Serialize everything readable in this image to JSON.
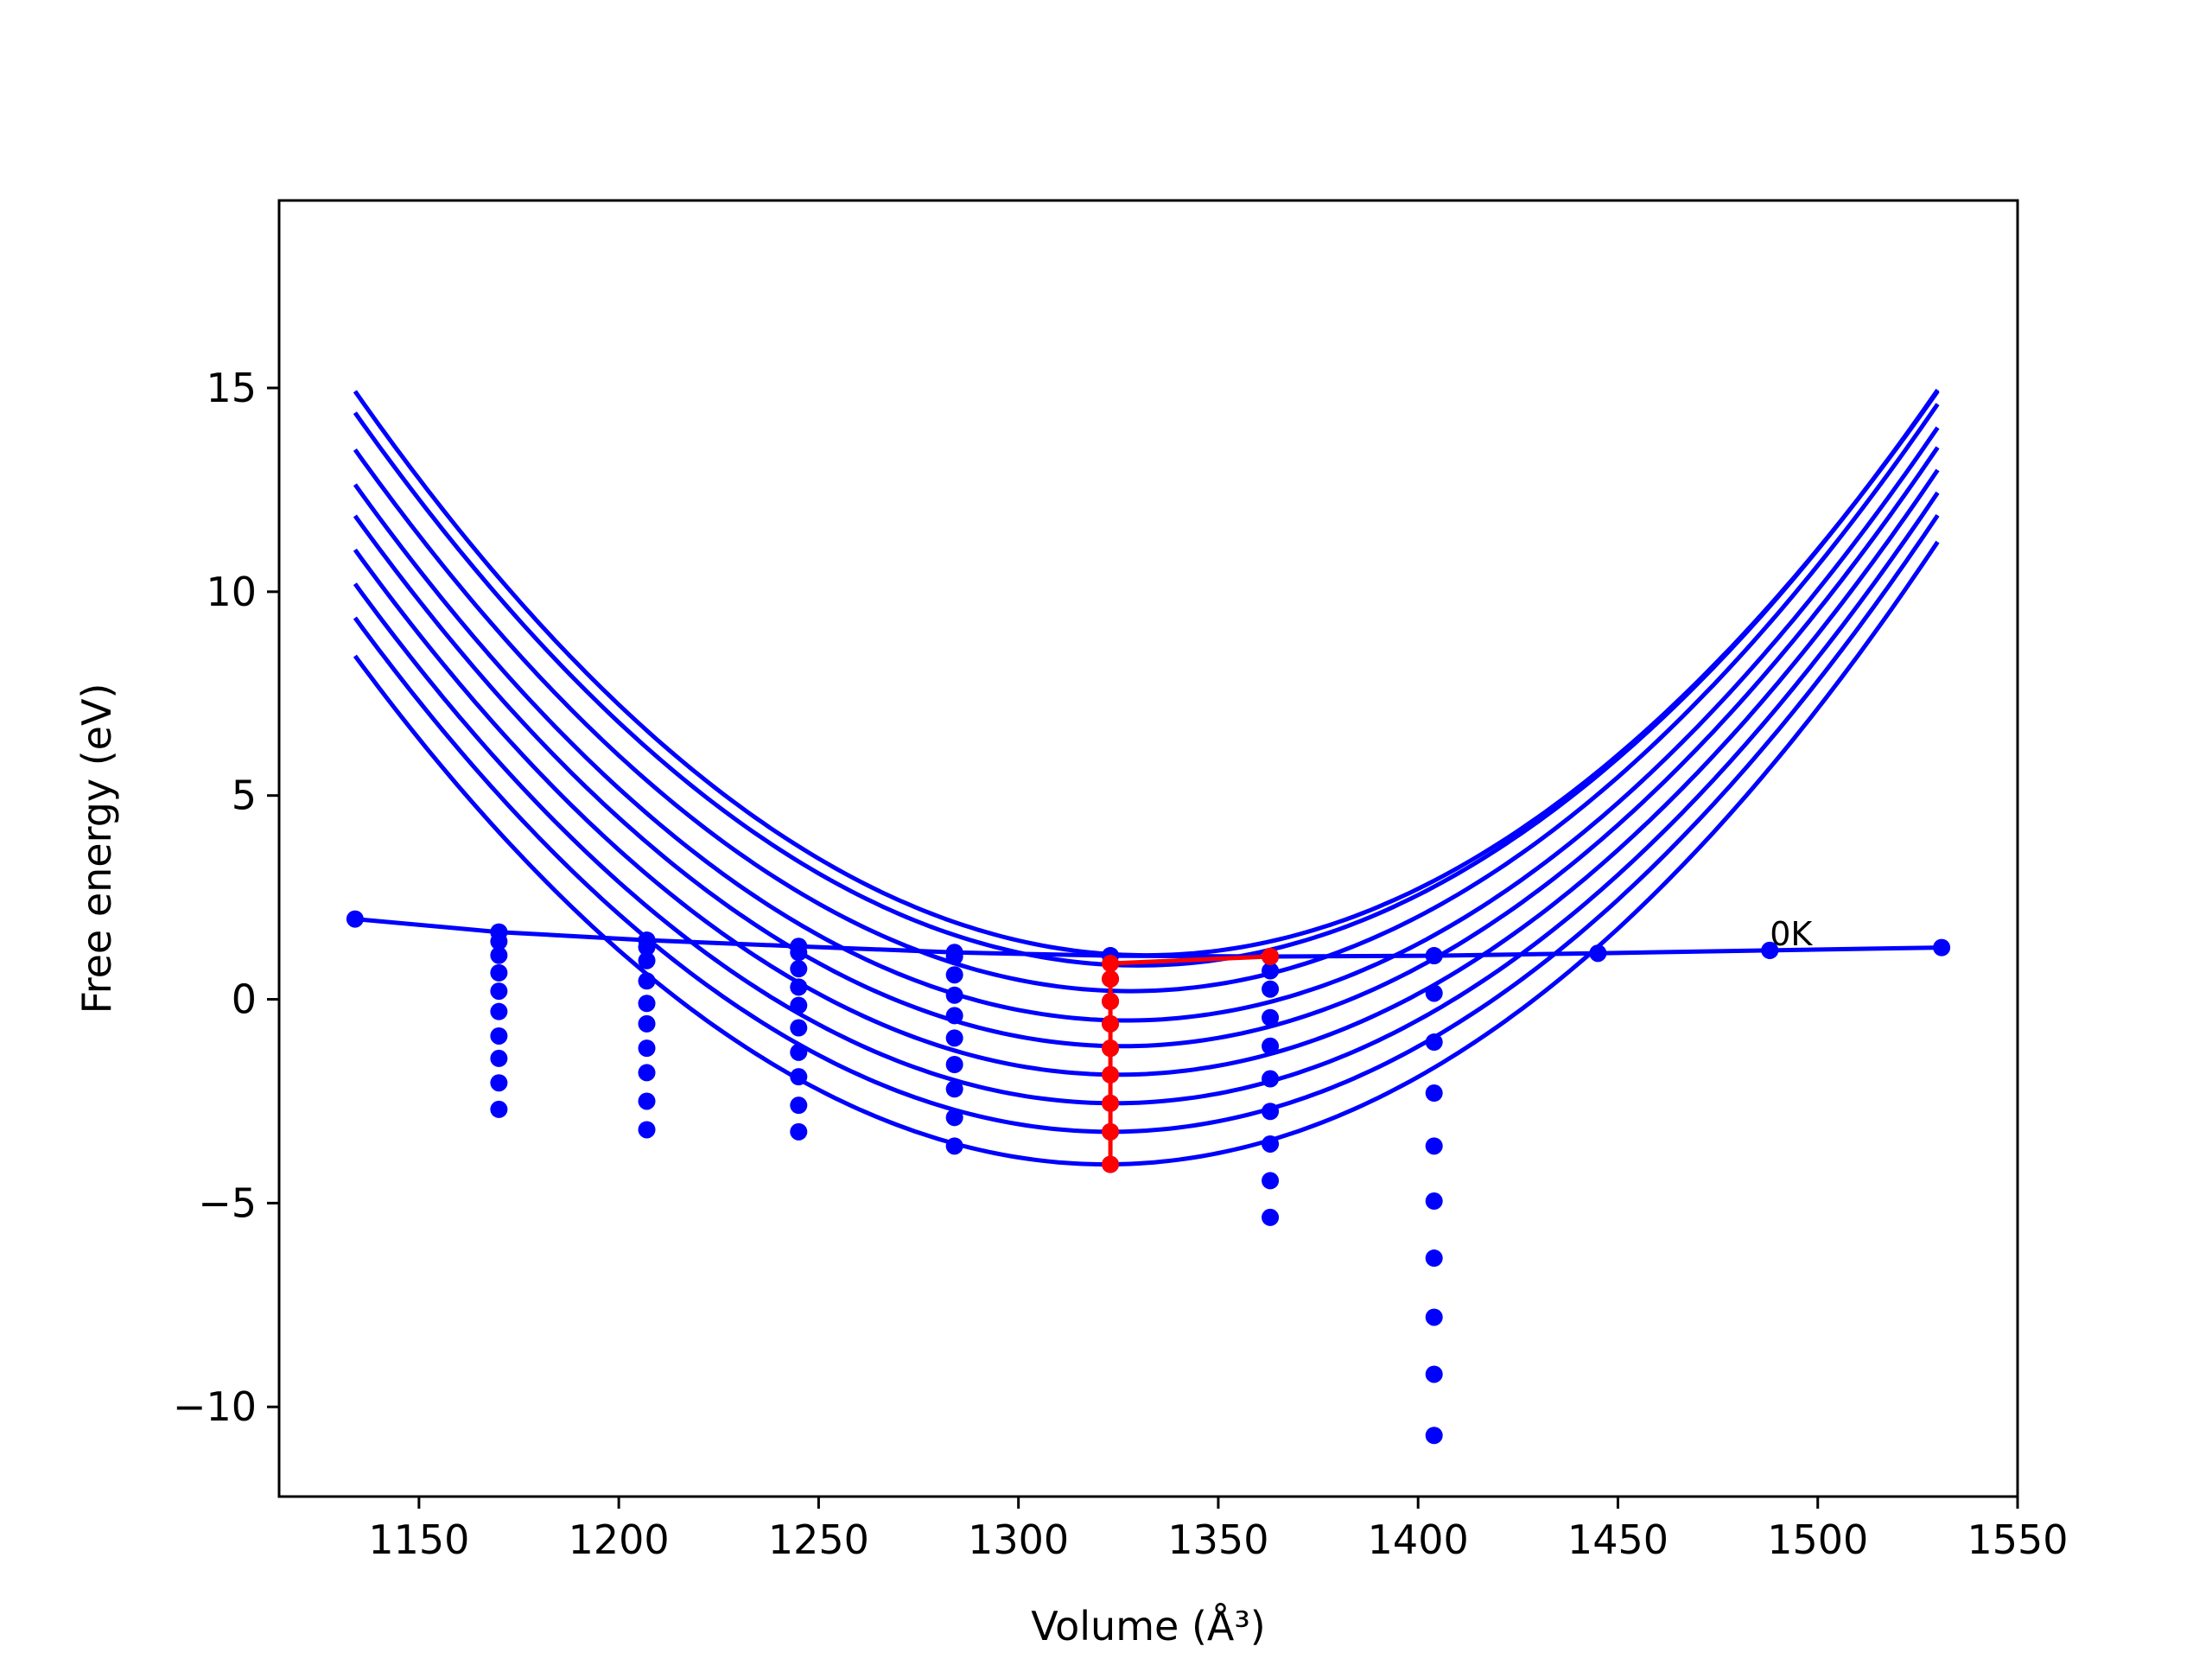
{
  "chart_data": {
    "type": "line",
    "title": "",
    "xlabel": "Volume (Å³)",
    "ylabel": "Free energy (eV)",
    "xlim": [
      1115,
      1550
    ],
    "ylim": [
      -12.2,
      19.6
    ],
    "xticks": [
      1150,
      1200,
      1250,
      1300,
      1350,
      1400,
      1450,
      1500,
      1550
    ],
    "yticks": [
      -10,
      -5,
      0,
      5,
      10,
      15
    ],
    "xtick_labels": [
      "1150",
      "1200",
      "1250",
      "1300",
      "1350",
      "1400",
      "1450",
      "1500",
      "1550"
    ],
    "ytick_labels": [
      "−10",
      "−5",
      "0",
      "5",
      "10",
      "15"
    ],
    "grid": false,
    "annotation": {
      "text": "0K",
      "x": 1488,
      "y": 1.2
    },
    "colors": {
      "curves": "#0000ff",
      "points": "#0000ff",
      "minimum_path": "#ff0000",
      "axes": "#000000"
    },
    "fitted_curves": {
      "x_range": [
        1134,
        1531
      ],
      "B": 0.000353,
      "curves": [
        {
          "v0": 1332,
          "f0": 1.08
        },
        {
          "v0": 1330,
          "f0": 0.83
        },
        {
          "v0": 1328,
          "f0": 0.2
        },
        {
          "v0": 1327,
          "f0": -0.52
        },
        {
          "v0": 1326,
          "f0": -1.15
        },
        {
          "v0": 1325,
          "f0": -1.85
        },
        {
          "v0": 1324,
          "f0": -2.55
        },
        {
          "v0": 1323,
          "f0": -3.25
        },
        {
          "v0": 1322,
          "f0": -4.05
        }
      ]
    },
    "zero_kelvin_series": {
      "name": "0K",
      "x": [
        1134,
        1170,
        1207,
        1245,
        1284,
        1323,
        1363,
        1404,
        1445,
        1488,
        1531
      ],
      "y": [
        1.97,
        1.65,
        1.45,
        1.3,
        1.15,
        1.07,
        1.05,
        1.07,
        1.13,
        1.2,
        1.27
      ]
    },
    "volume_points": [
      {
        "x": 1170,
        "y": [
          1.65,
          1.42,
          1.08,
          0.65,
          0.2,
          -0.3,
          -0.9,
          -1.45,
          -2.05,
          -2.7
        ]
      },
      {
        "x": 1207,
        "y": [
          1.45,
          1.28,
          0.95,
          0.45,
          -0.1,
          -0.6,
          -1.2,
          -1.8,
          -2.5,
          -3.2
        ]
      },
      {
        "x": 1245,
        "y": [
          1.15,
          0.75,
          0.3,
          -0.15,
          -0.7,
          -1.3,
          -1.9,
          -2.6,
          -3.25
        ]
      },
      {
        "x": 1284,
        "y": [
          1.05,
          0.6,
          0.1,
          -0.4,
          -0.95,
          -1.6,
          -2.2,
          -2.9,
          -3.6
        ]
      },
      {
        "x": 1323,
        "y": [
          1.07,
          0.5,
          -0.05,
          -0.6,
          -1.2,
          -1.85,
          -2.55,
          -3.25,
          -4.05
        ]
      },
      {
        "x": 1363,
        "y": [
          1.05,
          0.7,
          0.25,
          -0.45,
          -1.15,
          -1.95,
          -2.75,
          -3.55,
          -4.45,
          -5.35
        ]
      },
      {
        "x": 1404,
        "y": [
          1.07,
          0.15,
          -1.05,
          -2.3,
          -3.6,
          -4.95,
          -6.35,
          -7.8,
          -9.2,
          -10.7
        ]
      },
      {
        "x": 1445,
        "y": [
          1.13
        ]
      },
      {
        "x": 1488,
        "y": [
          1.2
        ]
      }
    ],
    "minimum_path": {
      "x": [
        1323,
        1323,
        1323,
        1323,
        1323,
        1323,
        1323,
        1323,
        1323,
        1363
      ],
      "y": [
        -4.05,
        -3.25,
        -2.55,
        -1.85,
        -1.2,
        -0.6,
        -0.05,
        0.5,
        0.88,
        1.05
      ]
    }
  }
}
